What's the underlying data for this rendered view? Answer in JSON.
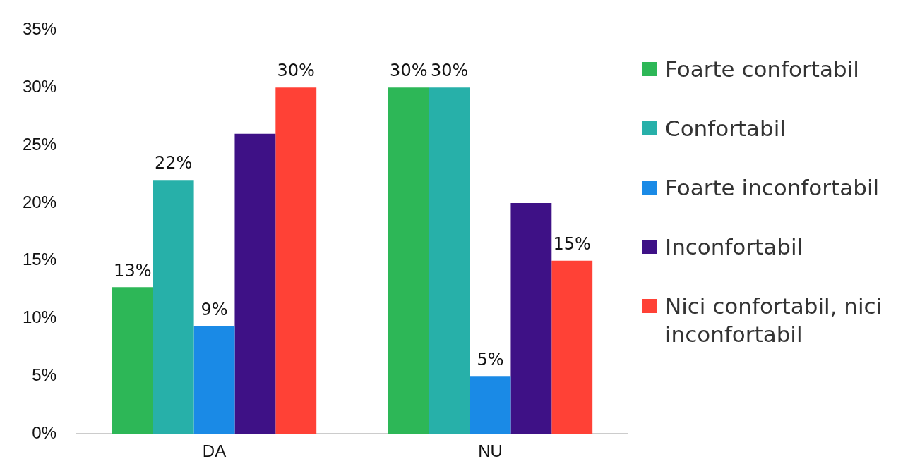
{
  "chart_data": {
    "type": "bar",
    "categories": [
      "DA",
      "NU"
    ],
    "series": [
      {
        "name": "Foarte confortabil",
        "color": "#2db757",
        "values": [
          12.7,
          30
        ],
        "value_labels": [
          "13%",
          "30%"
        ]
      },
      {
        "name": "Confortabil",
        "color": "#27b0a9",
        "values": [
          22,
          30
        ],
        "value_labels": [
          "22%",
          "30%"
        ]
      },
      {
        "name": "Foarte inconfortabil",
        "color": "#1a8ae6",
        "values": [
          9.3,
          5
        ],
        "value_labels": [
          "9%",
          "5%"
        ]
      },
      {
        "name": "Inconfortabil",
        "color": "#3e1186",
        "values": [
          26,
          20
        ],
        "value_labels": [
          null,
          null
        ]
      },
      {
        "name": "Nici confortabil, nici inconfortabil",
        "color": "#ff4136",
        "values": [
          30,
          15
        ],
        "value_labels": [
          "30%",
          "15%"
        ]
      }
    ],
    "ylim": [
      0,
      35
    ],
    "yticks": [
      {
        "value": 0,
        "label": "0%"
      },
      {
        "value": 5,
        "label": "5%"
      },
      {
        "value": 10,
        "label": "10%"
      },
      {
        "value": 15,
        "label": "15%"
      },
      {
        "value": 20,
        "label": "20%"
      },
      {
        "value": 25,
        "label": "25%"
      },
      {
        "value": 30,
        "label": "30%"
      },
      {
        "value": 35,
        "label": "35%"
      }
    ],
    "grid": false,
    "legend": "right"
  }
}
